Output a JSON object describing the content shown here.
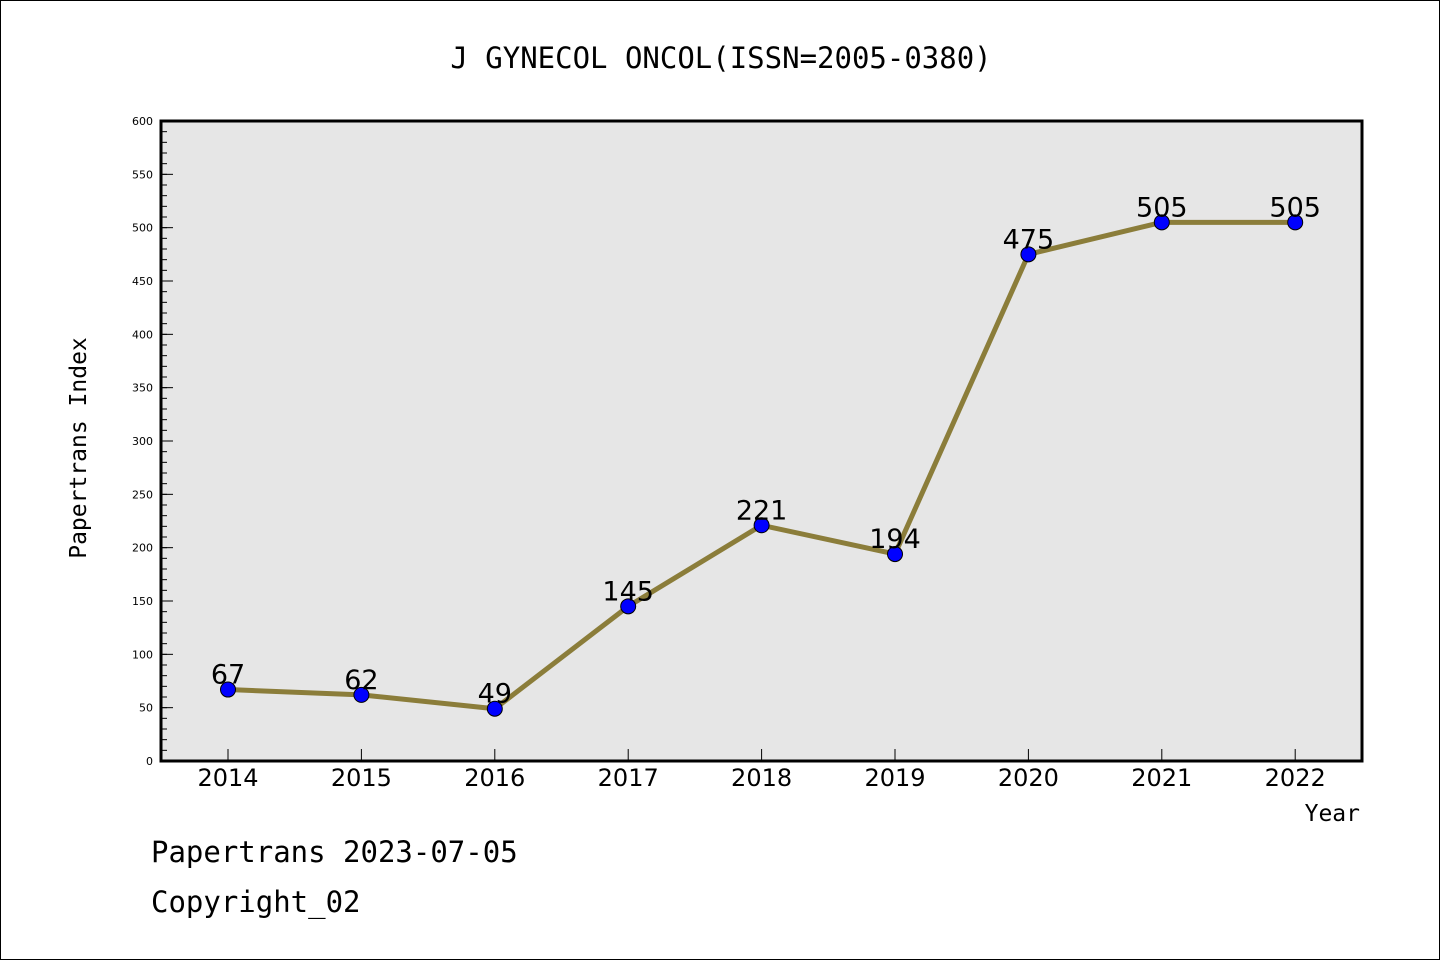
{
  "chart_data": {
    "type": "line",
    "title": "J GYNECOL ONCOL(ISSN=2005-0380)",
    "xlabel": "Year",
    "ylabel": "Papertrans Index",
    "categories": [
      "2014",
      "2015",
      "2016",
      "2017",
      "2018",
      "2019",
      "2020",
      "2021",
      "2022"
    ],
    "values": [
      67,
      62,
      49,
      145,
      221,
      194,
      475,
      505,
      505
    ],
    "data_labels": [
      "67",
      "62",
      "49",
      "145",
      "221",
      "194",
      "475",
      "505",
      "505"
    ],
    "ylim": [
      0,
      600
    ],
    "yticks": [
      0,
      50,
      100,
      150,
      200,
      250,
      300,
      350,
      400,
      450,
      500,
      550,
      600
    ],
    "ytick_labels": [
      "0",
      "50",
      "100",
      "150",
      "200",
      "250",
      "300",
      "350",
      "400",
      "450",
      "500",
      "550",
      "600"
    ],
    "grid": false,
    "line_color": "#8b7d3a",
    "marker_color": "#0000ff",
    "plot_background": "#e6e6e6"
  },
  "footer": {
    "source": "Papertrans 2023-07-05",
    "copyright": "Copyright_02"
  }
}
